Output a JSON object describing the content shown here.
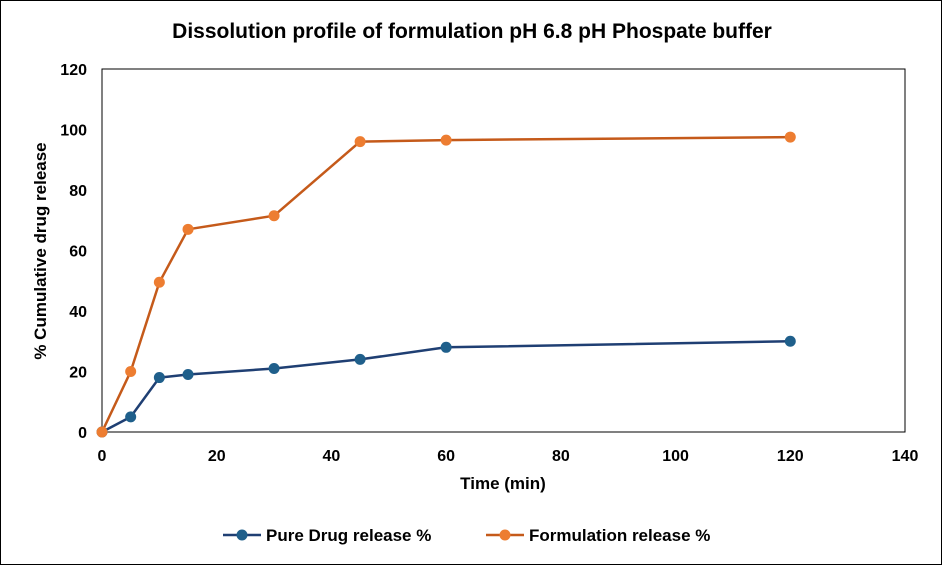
{
  "chart_data": {
    "type": "line",
    "title": "Dissolution profile of formulation pH  6.8 pH Phospate buffer",
    "xlabel": "Time (min)",
    "ylabel": "% Cumulative drug release",
    "xlim": [
      0,
      140
    ],
    "ylim": [
      0,
      120
    ],
    "xticks": [
      0,
      20,
      40,
      60,
      80,
      100,
      120,
      140
    ],
    "yticks": [
      0,
      20,
      40,
      60,
      80,
      100,
      120
    ],
    "grid": false,
    "legend_position": "bottom",
    "series": [
      {
        "name": "Pure Drug release %",
        "color": "#1f3f73",
        "marker_color": "#1f5f8b",
        "x": [
          0,
          5,
          10,
          15,
          30,
          45,
          60,
          120
        ],
        "y": [
          0,
          5,
          18,
          19,
          21,
          24,
          28,
          30
        ]
      },
      {
        "name": "Formulation release %",
        "color": "#c55a1a",
        "marker_color": "#ed7d31",
        "x": [
          0,
          5,
          10,
          15,
          30,
          45,
          60,
          120
        ],
        "y": [
          0,
          20,
          49.5,
          67,
          71.5,
          96,
          96.5,
          97.5
        ]
      }
    ]
  }
}
